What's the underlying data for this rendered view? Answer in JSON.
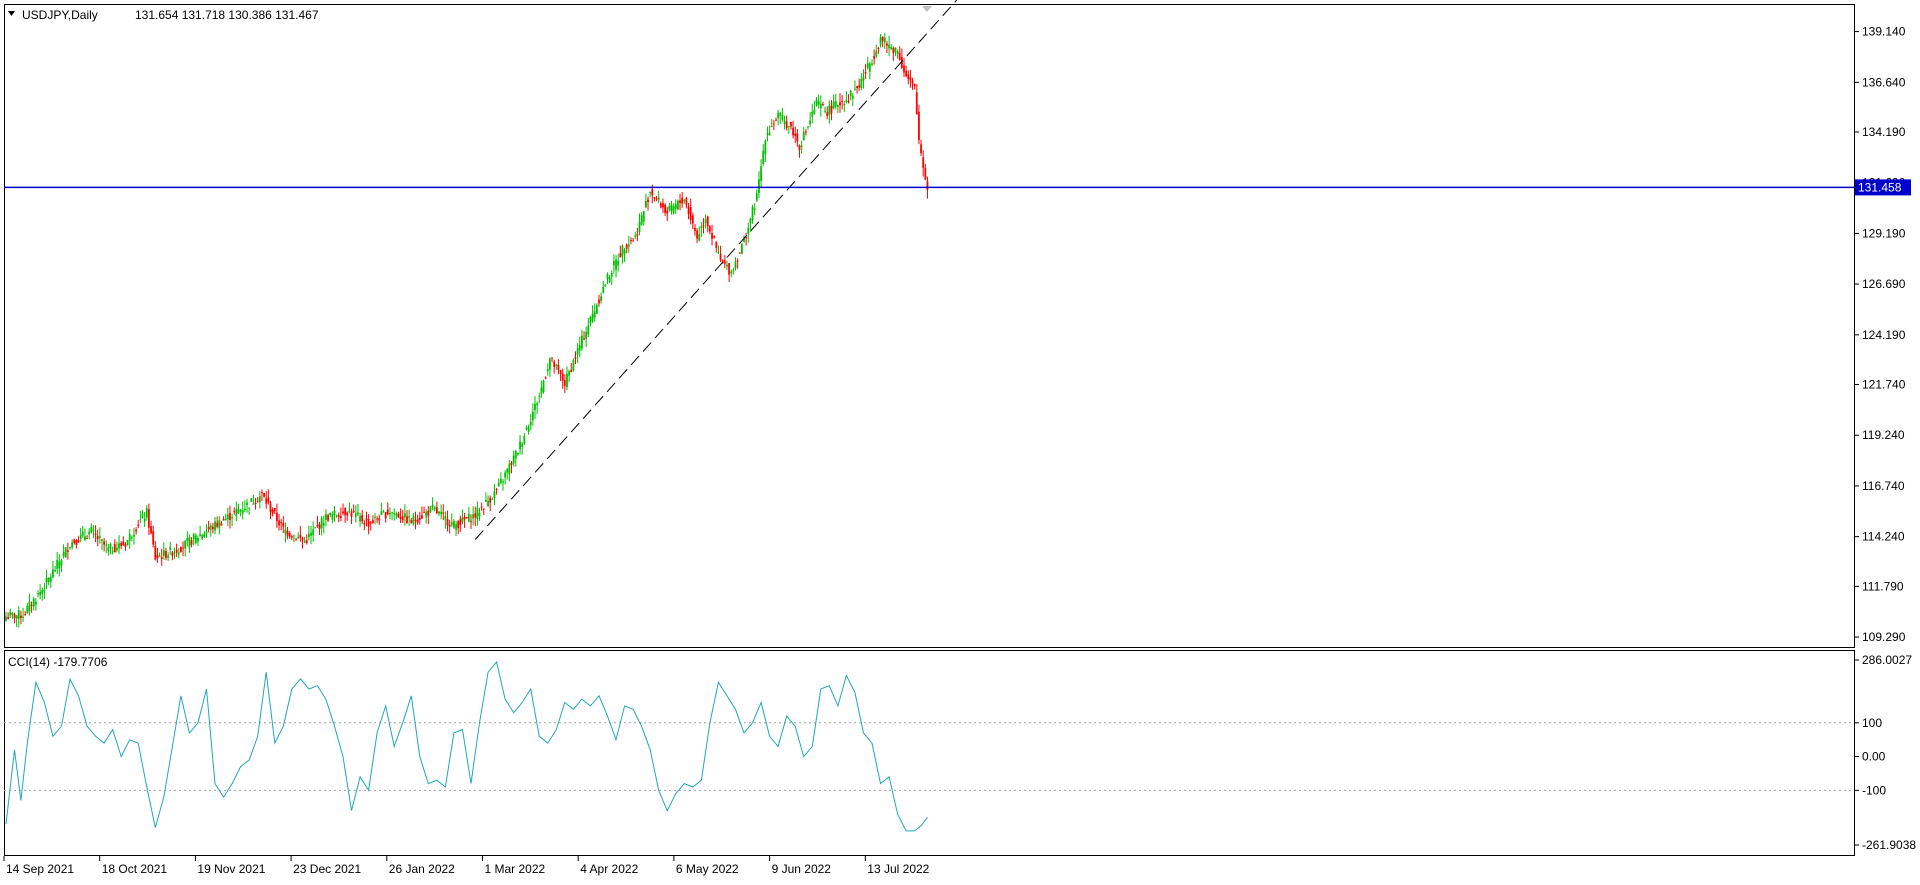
{
  "header": {
    "symbol_label": "USDJPY,Daily",
    "ohlc_label": "131.654 131.718 130.386 131.467"
  },
  "indicator": {
    "label": "CCI(14) -179.7706"
  },
  "colors": {
    "bull": "#00c000",
    "bear": "#ff0000",
    "hline": "#0000cc",
    "cci": "#20a8b8",
    "trend": "#000000",
    "frame": "#000000",
    "price_label_bg": "#0000cc"
  },
  "chart_data": [
    {
      "type": "candlestick",
      "title": "USDJPY,Daily",
      "x_tick_labels": [
        "14 Sep 2021",
        "18 Oct 2021",
        "19 Nov 2021",
        "23 Dec 2021",
        "26 Jan 2022",
        "1 Mar 2022",
        "4 Apr 2022",
        "6 May 2022",
        "9 Jun 2022",
        "13 Jul 2022"
      ],
      "y_tick_labels": [
        "139.140",
        "136.640",
        "134.190",
        "131.690",
        "129.190",
        "126.690",
        "124.190",
        "121.740",
        "119.240",
        "116.740",
        "114.240",
        "111.790",
        "109.290"
      ],
      "ylim": [
        108.8,
        140.5
      ],
      "current_price_label": "131.458",
      "current_price": 131.458,
      "grid": false,
      "trendline": {
        "style": "dashed",
        "from": {
          "bar": 220,
          "price": 114.1
        },
        "to": {
          "bar": 450,
          "price": 141.2
        }
      },
      "anchors": [
        [
          0,
          110.3
        ],
        [
          8,
          110.4
        ],
        [
          18,
          111.8
        ],
        [
          30,
          113.9
        ],
        [
          40,
          114.5
        ],
        [
          48,
          113.6
        ],
        [
          56,
          113.9
        ],
        [
          62,
          114.9
        ],
        [
          66,
          115.4
        ],
        [
          70,
          113.2
        ],
        [
          80,
          113.6
        ],
        [
          92,
          114.4
        ],
        [
          110,
          115.6
        ],
        [
          120,
          116.3
        ],
        [
          130,
          114.6
        ],
        [
          140,
          114.0
        ],
        [
          150,
          115.2
        ],
        [
          160,
          115.5
        ],
        [
          170,
          114.9
        ],
        [
          180,
          115.5
        ],
        [
          190,
          115.0
        ],
        [
          200,
          115.6
        ],
        [
          210,
          114.8
        ],
        [
          220,
          115.3
        ],
        [
          230,
          116.5
        ],
        [
          240,
          118.5
        ],
        [
          250,
          121.2
        ],
        [
          255,
          123.0
        ],
        [
          258,
          122.5
        ],
        [
          262,
          121.8
        ],
        [
          268,
          123.4
        ],
        [
          275,
          125.2
        ],
        [
          282,
          127.0
        ],
        [
          290,
          128.6
        ],
        [
          295,
          129.0
        ],
        [
          302,
          131.3
        ],
        [
          310,
          130.2
        ],
        [
          318,
          130.9
        ],
        [
          324,
          129.0
        ],
        [
          328,
          130.0
        ],
        [
          335,
          127.8
        ],
        [
          340,
          127.3
        ],
        [
          346,
          128.8
        ],
        [
          352,
          131.0
        ],
        [
          356,
          134.0
        ],
        [
          362,
          135.0
        ],
        [
          368,
          134.4
        ],
        [
          372,
          133.5
        ],
        [
          376,
          134.5
        ],
        [
          380,
          135.6
        ],
        [
          385,
          135.2
        ],
        [
          390,
          135.6
        ],
        [
          395,
          135.9
        ],
        [
          400,
          136.5
        ],
        [
          406,
          137.8
        ],
        [
          410,
          138.8
        ],
        [
          414,
          138.4
        ],
        [
          418,
          138.2
        ],
        [
          422,
          136.9
        ],
        [
          426,
          136.3
        ],
        [
          428,
          133.8
        ],
        [
          431,
          131.9
        ],
        [
          432,
          131.5
        ]
      ]
    },
    {
      "type": "line",
      "title": "CCI(14)",
      "y_tick_labels": [
        "286.0027",
        "100",
        "0.00",
        "-100",
        "-261.9038"
      ],
      "ylim": [
        -261.9038,
        286.0027
      ],
      "reference_lines": [
        100,
        -100
      ],
      "last_value": -179.7706,
      "x": [
        0,
        4,
        7,
        10,
        14,
        18,
        22,
        26,
        30,
        34,
        38,
        42,
        46,
        50,
        54,
        58,
        62,
        66,
        70,
        74,
        78,
        82,
        86,
        90,
        94,
        98,
        102,
        106,
        110,
        114,
        118,
        122,
        126,
        130,
        134,
        138,
        142,
        146,
        150,
        154,
        158,
        162,
        166,
        170,
        174,
        178,
        182,
        186,
        190,
        194,
        198,
        202,
        206,
        210,
        214,
        218,
        222,
        226,
        230,
        234,
        238,
        242,
        246,
        250,
        254,
        258,
        262,
        266,
        270,
        274,
        278,
        282,
        286,
        290,
        294,
        298,
        302,
        306,
        310,
        314,
        318,
        322,
        326,
        330,
        334,
        338,
        342,
        346,
        350,
        354,
        358,
        362,
        366,
        370,
        374,
        378,
        382,
        386,
        390,
        394,
        398,
        402,
        406,
        410,
        414,
        418,
        422,
        426,
        429,
        432
      ],
      "values": [
        -200,
        20,
        -130,
        40,
        220,
        160,
        60,
        90,
        230,
        180,
        90,
        60,
        40,
        80,
        0,
        50,
        40,
        -90,
        -210,
        -120,
        30,
        180,
        70,
        100,
        200,
        -80,
        -120,
        -80,
        -30,
        -10,
        60,
        250,
        40,
        90,
        200,
        230,
        200,
        210,
        170,
        90,
        0,
        -160,
        -60,
        -100,
        70,
        150,
        30,
        100,
        180,
        0,
        -80,
        -70,
        -90,
        70,
        80,
        -80,
        100,
        250,
        280,
        170,
        130,
        160,
        200,
        60,
        40,
        80,
        160,
        140,
        170,
        150,
        180,
        120,
        50,
        150,
        140,
        90,
        20,
        -100,
        -160,
        -110,
        -80,
        -90,
        -70,
        100,
        220,
        180,
        140,
        70,
        100,
        160,
        60,
        30,
        120,
        90,
        0,
        30,
        200,
        210,
        150,
        240,
        190,
        70,
        40,
        -80,
        -60,
        -170,
        -220,
        -220,
        -205,
        -180
      ]
    }
  ]
}
